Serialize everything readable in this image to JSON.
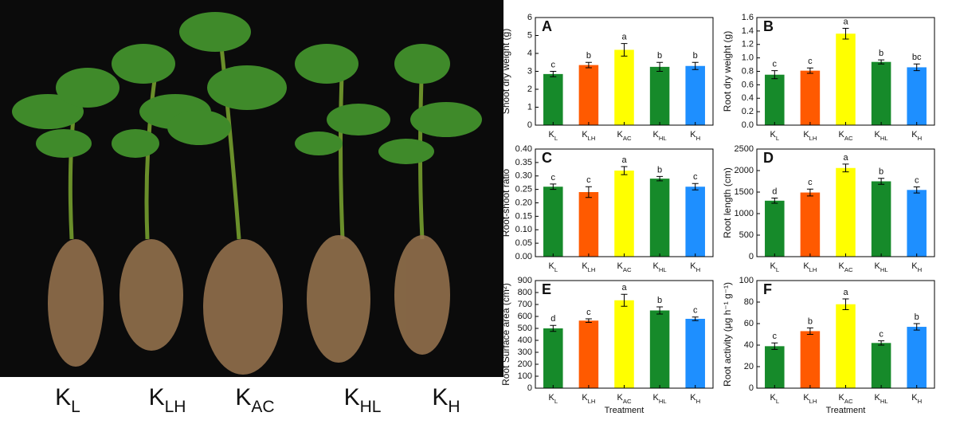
{
  "photo_labels": [
    "KL",
    "KLH",
    "KAC",
    "KHL",
    "KH"
  ],
  "chart_data": [
    {
      "type": "bar",
      "panel": "A",
      "ylabel": "Shoot dry weight (g)",
      "categories": [
        "KL",
        "KLH",
        "KAC",
        "KHL",
        "KH"
      ],
      "values": [
        2.85,
        3.35,
        4.2,
        3.25,
        3.3
      ],
      "errors": [
        0.15,
        0.15,
        0.35,
        0.25,
        0.2
      ],
      "annotations": [
        "c",
        "b",
        "a",
        "b",
        "b"
      ],
      "colors": [
        "#168a2a",
        "#ff5a00",
        "#ffff00",
        "#168a2a",
        "#1e8fff"
      ],
      "ylim": [
        0,
        6
      ],
      "yticks": [
        0,
        1,
        2,
        3,
        4,
        5,
        6
      ]
    },
    {
      "type": "bar",
      "panel": "B",
      "ylabel": "Root dry weight (g)",
      "categories": [
        "KL",
        "KLH",
        "KAC",
        "KHL",
        "KH"
      ],
      "values": [
        0.75,
        0.81,
        1.36,
        0.94,
        0.86
      ],
      "errors": [
        0.06,
        0.04,
        0.08,
        0.03,
        0.05
      ],
      "annotations": [
        "c",
        "c",
        "a",
        "b",
        "bc"
      ],
      "colors": [
        "#168a2a",
        "#ff5a00",
        "#ffff00",
        "#168a2a",
        "#1e8fff"
      ],
      "ylim": [
        0,
        1.6
      ],
      "yticks": [
        {
          "value": 0,
          "label": "0.0"
        },
        0.2,
        0.4,
        0.6,
        0.8,
        {
          "value": 1,
          "label": "1.0"
        },
        1.2,
        1.4,
        1.6
      ]
    },
    {
      "type": "bar",
      "panel": "C",
      "ylabel": "Root-shoot ratio",
      "categories": [
        "KL",
        "KLH",
        "KAC",
        "KHL",
        "KH"
      ],
      "values": [
        0.26,
        0.24,
        0.32,
        0.29,
        0.26
      ],
      "errors": [
        0.01,
        0.02,
        0.015,
        0.008,
        0.012
      ],
      "annotations": [
        "c",
        "c",
        "a",
        "b",
        "c"
      ],
      "colors": [
        "#168a2a",
        "#ff5a00",
        "#ffff00",
        "#168a2a",
        "#1e8fff"
      ],
      "ylim": [
        0,
        0.4
      ],
      "yticks": [
        {
          "value": 0,
          "label": "0.00"
        },
        0.05,
        {
          "value": 0.1,
          "label": "0.10"
        },
        0.15,
        {
          "value": 0.2,
          "label": "0.20"
        },
        0.25,
        {
          "value": 0.3,
          "label": "0.30"
        },
        0.35,
        {
          "value": 0.4,
          "label": "0.40"
        }
      ]
    },
    {
      "type": "bar",
      "panel": "D",
      "ylabel": "Root length (cm)",
      "categories": [
        "KL",
        "KLH",
        "KAC",
        "KHL",
        "KH"
      ],
      "values": [
        1300,
        1490,
        2060,
        1750,
        1550
      ],
      "errors": [
        60,
        80,
        90,
        70,
        70
      ],
      "annotations": [
        "d",
        "c",
        "a",
        "b",
        "c"
      ],
      "colors": [
        "#168a2a",
        "#ff5a00",
        "#ffff00",
        "#168a2a",
        "#1e8fff"
      ],
      "ylim": [
        0,
        2500
      ],
      "yticks": [
        0,
        500,
        1000,
        1500,
        2000,
        2500
      ]
    },
    {
      "type": "bar",
      "panel": "E",
      "ylabel": "Root Surface area (cm²)",
      "xlabel": "Treatment",
      "categories": [
        "KL",
        "KLH",
        "KAC",
        "KHL",
        "KH"
      ],
      "values": [
        500,
        565,
        735,
        650,
        580
      ],
      "errors": [
        25,
        15,
        50,
        30,
        15
      ],
      "annotations": [
        "d",
        "c",
        "a",
        "b",
        "c"
      ],
      "colors": [
        "#168a2a",
        "#ff5a00",
        "#ffff00",
        "#168a2a",
        "#1e8fff"
      ],
      "ylim": [
        0,
        900
      ],
      "yticks": [
        0,
        100,
        200,
        300,
        400,
        500,
        600,
        700,
        800,
        900
      ]
    },
    {
      "type": "bar",
      "panel": "F",
      "ylabel": "Root activity (μg h⁻¹ g⁻¹)",
      "xlabel": "Treatment",
      "categories": [
        "KL",
        "KLH",
        "KAC",
        "KHL",
        "KH"
      ],
      "values": [
        39,
        53,
        78,
        42,
        57
      ],
      "errors": [
        3,
        3,
        5,
        2,
        3
      ],
      "annotations": [
        "c",
        "b",
        "a",
        "c",
        "b"
      ],
      "colors": [
        "#168a2a",
        "#ff5a00",
        "#ffff00",
        "#168a2a",
        "#1e8fff"
      ],
      "ylim": [
        0,
        100
      ],
      "yticks": [
        0,
        20,
        40,
        60,
        80,
        100
      ]
    }
  ]
}
